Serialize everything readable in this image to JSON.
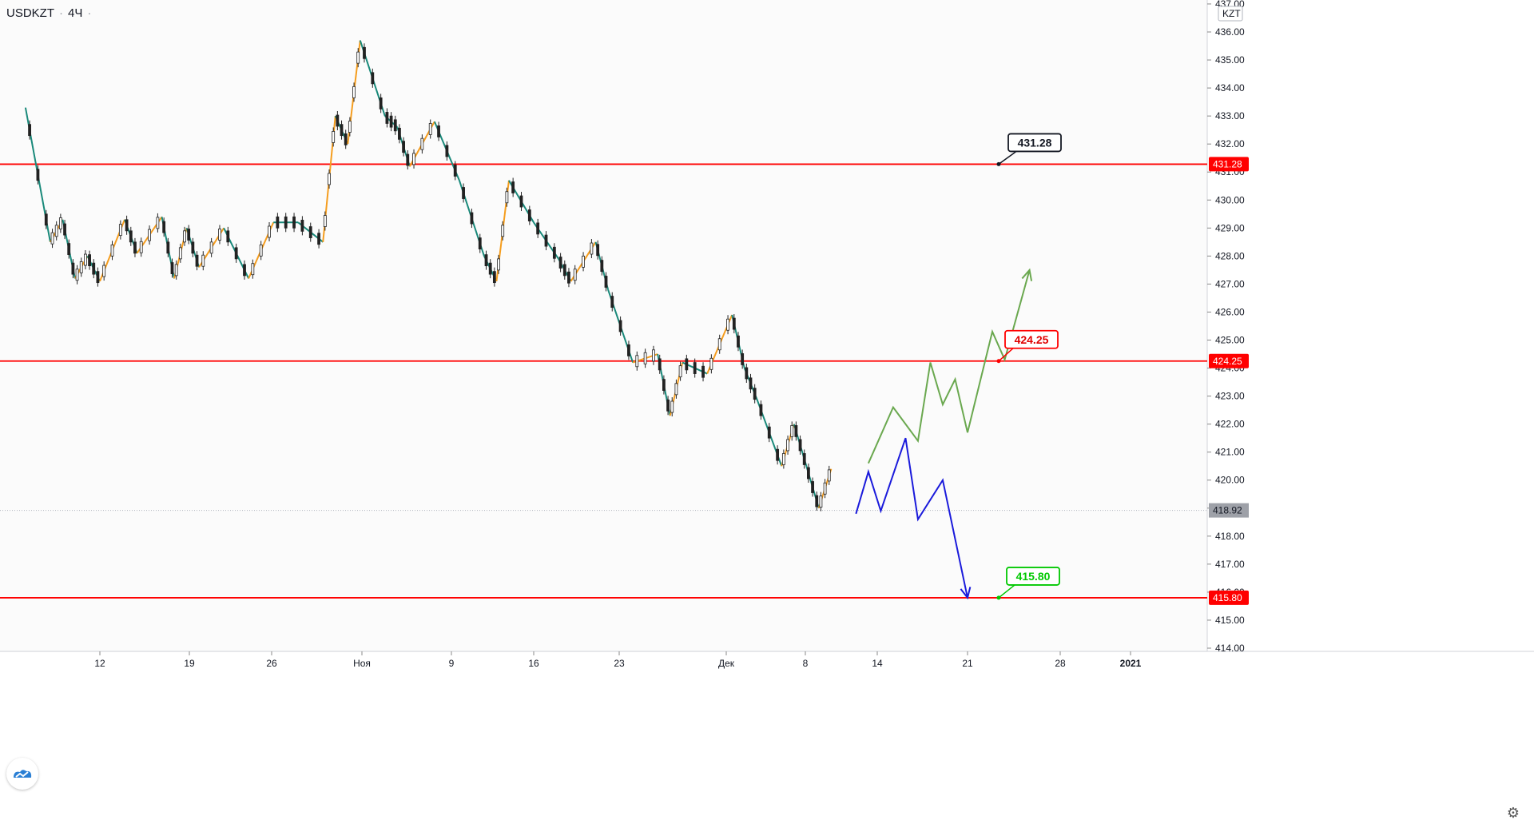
{
  "header": {
    "symbol": "USDKZT",
    "separator": "·",
    "timeframe": "4Ч",
    "dot": "·"
  },
  "currency_label": "KZT",
  "colors": {
    "up_zigzag": "#f59d1e",
    "down_zigzag": "#19897a",
    "level_line": "#ff0000",
    "bullish_path": "#6aa84f",
    "bearish_path": "#1a1adb",
    "current_price_badge": "#9ea1a8"
  },
  "chart_data": {
    "type": "line",
    "title": "",
    "xlabel": "",
    "ylabel": "",
    "ylim": [
      413.0,
      437.0
    ],
    "y_ticks": [
      "414.00",
      "415.00",
      "416.00",
      "417.00",
      "418.00",
      "419.00",
      "420.00",
      "421.00",
      "422.00",
      "423.00",
      "424.00",
      "425.00",
      "426.00",
      "427.00",
      "428.00",
      "429.00",
      "430.00",
      "431.00",
      "432.00",
      "433.00",
      "434.00",
      "435.00",
      "436.00",
      "437.00"
    ],
    "x_ticks": [
      "12",
      "19",
      "26",
      "Ноя",
      "9",
      "16",
      "23",
      "Дек",
      "8",
      "14",
      "21",
      "28",
      "2021"
    ],
    "current_price": "418.92",
    "levels": [
      {
        "value": 431.28,
        "label": "431.28",
        "style": "black"
      },
      {
        "value": 424.25,
        "label": "424.25",
        "style": "red"
      },
      {
        "value": 415.8,
        "label": "415.80",
        "style": "green"
      }
    ],
    "series": [
      {
        "type": "zigzag",
        "points": [
          [
            "Oct 6",
            433.3
          ],
          [
            "Oct 8",
            428.5
          ],
          [
            "Oct 9",
            429.3
          ],
          [
            "Oct 10",
            427.2
          ],
          [
            "Oct 11",
            428.0
          ],
          [
            "Oct 12",
            427.1
          ],
          [
            "Oct 14",
            429.3
          ],
          [
            "Oct 15",
            428.1
          ],
          [
            "Oct 17",
            429.4
          ],
          [
            "Oct 18",
            427.2
          ],
          [
            "Oct 19",
            429.0
          ],
          [
            "Oct 20",
            427.6
          ],
          [
            "Oct 22",
            429.0
          ],
          [
            "Oct 24",
            427.2
          ],
          [
            "Oct 26",
            429.2
          ],
          [
            "Oct 28",
            429.2
          ],
          [
            "Oct 30",
            428.5
          ],
          [
            "Oct 31",
            433.0
          ],
          [
            "Nov 1",
            432.0
          ],
          [
            "Nov 2",
            435.7
          ],
          [
            "Nov 4",
            433.0
          ],
          [
            "Nov 5",
            432.6
          ],
          [
            "Nov 6",
            431.2
          ],
          [
            "Nov 8",
            432.8
          ],
          [
            "Nov 10",
            430.7
          ],
          [
            "Nov 12",
            428.0
          ],
          [
            "Nov 13",
            427.1
          ],
          [
            "Nov 14",
            430.7
          ],
          [
            "Nov 16",
            429.2
          ],
          [
            "Nov 18",
            427.9
          ],
          [
            "Nov 19",
            427.1
          ],
          [
            "Nov 21",
            428.5
          ],
          [
            "Nov 22",
            426.8
          ],
          [
            "Nov 24",
            424.2
          ],
          [
            "Nov 26",
            424.5
          ],
          [
            "Nov 27",
            422.3
          ],
          [
            "Nov 28",
            424.2
          ],
          [
            "Nov 30",
            423.8
          ],
          [
            "Dec 2",
            425.9
          ],
          [
            "Dec 3",
            424.0
          ],
          [
            "Dec 4",
            422.9
          ],
          [
            "Dec 6",
            420.5
          ],
          [
            "Dec 7",
            422.0
          ],
          [
            "Dec 8",
            420.5
          ],
          [
            "Dec 9",
            419.0
          ],
          [
            "Dec 10",
            420.4
          ]
        ]
      },
      {
        "name": "",
        "type": "projection-up",
        "points": [
          [
            "Dec 13",
            420.6
          ],
          [
            "Dec 15",
            422.6
          ],
          [
            "Dec 17",
            421.4
          ],
          [
            "Dec 18",
            424.2
          ],
          [
            "Dec 19",
            422.7
          ],
          [
            "Dec 20",
            423.6
          ],
          [
            "Dec 21",
            421.7
          ],
          [
            "Dec 23",
            425.3
          ],
          [
            "Dec 24",
            424.3
          ],
          [
            "Dec 26",
            427.5
          ]
        ]
      },
      {
        "name": "",
        "type": "projection-down",
        "points": [
          [
            "Dec 12",
            418.8
          ],
          [
            "Dec 13",
            420.3
          ],
          [
            "Dec 14",
            418.9
          ],
          [
            "Dec 16",
            421.5
          ],
          [
            "Dec 17",
            418.6
          ],
          [
            "Dec 19",
            420.0
          ],
          [
            "Dec 21",
            415.8
          ]
        ]
      }
    ]
  }
}
